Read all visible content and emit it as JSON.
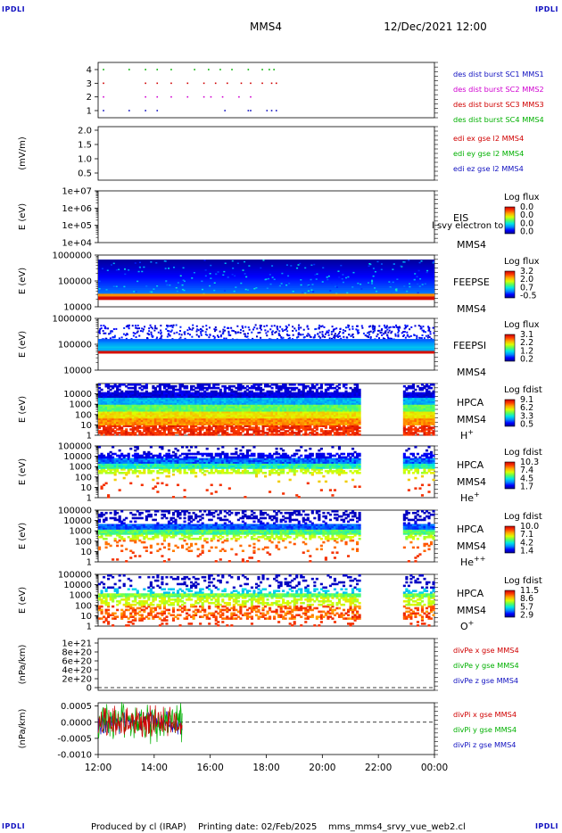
{
  "corner_label": "IPDLI",
  "header": {
    "spacecraft": "MMS4",
    "datetime": "12/Dec/2021 12:00"
  },
  "footer": {
    "produced_by": "Produced by cl (IRAP)",
    "printing_date": "Printing date: 02/Feb/2025",
    "product": "mms_mms4_srvy_vue_web2.cl"
  },
  "colors": {
    "blue": "#1010c0",
    "magenta": "#d000d0",
    "red": "#d00000",
    "green": "#00b000"
  },
  "chart_data": [
    {
      "type": "scatter",
      "id": "burst",
      "yticks": [
        "1",
        "2",
        "3",
        "4"
      ],
      "series": [
        {
          "name": "des dist burst SC1 MMS1",
          "color": "#1010c0",
          "y": 1,
          "x": [
            "12:10",
            "13:05",
            "13:40",
            "14:05",
            "16:30",
            "17:20",
            "17:25",
            "18:00",
            "18:10",
            "18:20"
          ]
        },
        {
          "name": "des dist burst SC2 MMS2",
          "color": "#d000d0",
          "y": 2,
          "x": [
            "12:10",
            "13:40",
            "14:05",
            "14:35",
            "15:10",
            "15:45",
            "16:00",
            "16:25",
            "17:00",
            "17:25"
          ]
        },
        {
          "name": "des dist burst SC3 MMS3",
          "color": "#d00000",
          "y": 3,
          "x": [
            "12:10",
            "13:40",
            "14:05",
            "14:35",
            "15:10",
            "15:45",
            "16:10",
            "16:35",
            "17:05",
            "17:25",
            "17:50",
            "18:10",
            "18:20"
          ]
        },
        {
          "name": "des dist burst SC4 MMS4",
          "color": "#00b000",
          "y": 4,
          "x": [
            "12:10",
            "13:05",
            "13:40",
            "14:05",
            "14:35",
            "15:25",
            "15:55",
            "16:20",
            "16:45",
            "17:20",
            "17:50",
            "18:05",
            "18:15"
          ]
        }
      ]
    },
    {
      "type": "line",
      "id": "edi",
      "ylabel": "(mV/m)",
      "ylim": [
        0.5,
        2.0
      ],
      "yticks": [
        "0.5",
        "1.0",
        "1.5",
        "2.0"
      ],
      "series": [
        {
          "name": "edi ex gse l2 MMS4",
          "color": "#d00000",
          "values": []
        },
        {
          "name": "edi ey gse l2 MMS4",
          "color": "#00b000",
          "values": []
        },
        {
          "name": "edi ez gse l2 MMS4",
          "color": "#1010c0",
          "values": []
        }
      ]
    },
    {
      "type": "heatmap",
      "id": "eis",
      "ylabel": "E (eV)",
      "yscale": "log",
      "ylim": [
        10000.0,
        10000000.0
      ],
      "yticks": [
        "1e+04",
        "1e+05",
        "1e+06",
        "1e+07"
      ],
      "instrument": "EIS",
      "spacecraft": "MMS4",
      "overlay_text": "l svy electron to",
      "colorbar": {
        "title": "Log flux",
        "ticks": [
          "0.0",
          "0.0",
          "0.0",
          "0.0"
        ]
      }
    },
    {
      "type": "heatmap",
      "id": "feeps-e",
      "ylabel": "E (eV)",
      "yscale": "log",
      "ylim": [
        10000.0,
        1000000.0
      ],
      "yticks": [
        "10000",
        "100000",
        "1000000"
      ],
      "instrument": "FEEPSE",
      "spacecraft": "MMS4",
      "colorbar": {
        "title": "Log flux",
        "ticks": [
          "3.2",
          "2.0",
          "0.7",
          "-0.5"
        ]
      }
    },
    {
      "type": "heatmap",
      "id": "feeps-i",
      "ylabel": "E (eV)",
      "yscale": "log",
      "ylim": [
        10000.0,
        1000000.0
      ],
      "yticks": [
        "10000",
        "100000",
        "1000000"
      ],
      "instrument": "FEEPSI",
      "spacecraft": "MMS4",
      "colorbar": {
        "title": "Log flux",
        "ticks": [
          "3.1",
          "2.2",
          "1.2",
          "0.2"
        ]
      }
    },
    {
      "type": "heatmap",
      "id": "hpca-h",
      "ylabel": "E (eV)",
      "yscale": "log",
      "ylim": [
        1,
        100000.0
      ],
      "yticks": [
        "1",
        "10",
        "100",
        "1000",
        "10000"
      ],
      "instrument": "HPCA",
      "spacecraft": "MMS4",
      "species": "H",
      "charge": "+",
      "colorbar": {
        "title": "Log fdist",
        "ticks": [
          "9.1",
          "6.2",
          "3.3",
          "0.5"
        ]
      }
    },
    {
      "type": "heatmap",
      "id": "hpca-he",
      "ylabel": "E (eV)",
      "yscale": "log",
      "ylim": [
        1,
        100000.0
      ],
      "yticks": [
        "1",
        "10",
        "100",
        "1000",
        "10000",
        "100000"
      ],
      "instrument": "HPCA",
      "spacecraft": "MMS4",
      "species": "He",
      "charge": "+",
      "colorbar": {
        "title": "Log fdist",
        "ticks": [
          "10.3",
          "7.4",
          "4.5",
          "1.7"
        ]
      }
    },
    {
      "type": "heatmap",
      "id": "hpca-he2",
      "ylabel": "E (eV)",
      "yscale": "log",
      "ylim": [
        1,
        100000.0
      ],
      "yticks": [
        "1",
        "10",
        "100",
        "1000",
        "10000",
        "100000"
      ],
      "instrument": "HPCA",
      "spacecraft": "MMS4",
      "species": "He",
      "charge": "++",
      "colorbar": {
        "title": "Log fdist",
        "ticks": [
          "10.0",
          "7.1",
          "4.2",
          "1.4"
        ]
      }
    },
    {
      "type": "heatmap",
      "id": "hpca-o",
      "ylabel": "E (eV)",
      "yscale": "log",
      "ylim": [
        1,
        100000.0
      ],
      "yticks": [
        "1",
        "10",
        "100",
        "1000",
        "10000",
        "100000"
      ],
      "instrument": "HPCA",
      "spacecraft": "MMS4",
      "species": "O",
      "charge": "+",
      "colorbar": {
        "title": "Log fdist",
        "ticks": [
          "11.5",
          "8.6",
          "5.7",
          "2.9"
        ]
      }
    },
    {
      "type": "line",
      "id": "divpe",
      "ylabel": "(nPa/km)",
      "ylim": [
        0,
        1e+21
      ],
      "yticks": [
        "0",
        "2e+20",
        "4e+20",
        "6e+20",
        "8e+20",
        "1e+21"
      ],
      "zero_line": true,
      "series": [
        {
          "name": "divPe x gse MMS4",
          "color": "#d00000",
          "values": []
        },
        {
          "name": "divPe y gse MMS4",
          "color": "#00b000",
          "values": []
        },
        {
          "name": "divPe z gse MMS4",
          "color": "#1010c0",
          "values": []
        }
      ]
    },
    {
      "type": "line",
      "id": "divpi",
      "ylabel": "(nPa/km)",
      "ylim": [
        -0.001,
        0.0006
      ],
      "yticks": [
        "-0.0010",
        "-0.0005",
        "0.0000",
        "0.0005"
      ],
      "zero_line": true,
      "data_range": [
        "12:00",
        "15:00"
      ],
      "series": [
        {
          "name": "divPi x gse MMS4",
          "color": "#d00000",
          "amplitude": 0.0006
        },
        {
          "name": "divPi y gse MMS4",
          "color": "#00b000",
          "amplitude": 0.0007
        },
        {
          "name": "divPi z gse MMS4",
          "color": "#1010c0",
          "amplitude": 0.0004
        }
      ]
    }
  ],
  "time_axis": {
    "range": [
      "12:00",
      "00:00"
    ],
    "ticks": [
      "12:00",
      "14:00",
      "16:00",
      "18:00",
      "20:00",
      "22:00",
      "00:00"
    ]
  },
  "data_gaps": {
    "hpca": {
      "from": "21:20",
      "to": "22:50"
    }
  }
}
